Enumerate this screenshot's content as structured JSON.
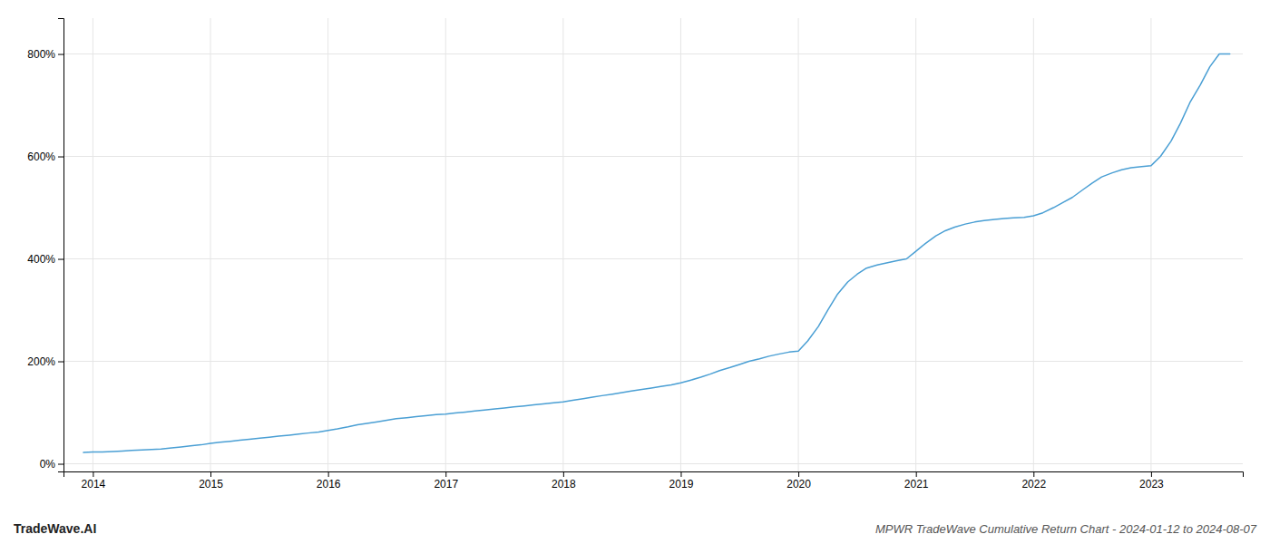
{
  "chart_data": {
    "type": "line",
    "title": "MPWR TradeWave Cumulative Return Chart - 2024-01-12 to 2024-08-07",
    "annotations": [
      "TradeWave.AI"
    ],
    "color": "#4a9fd4",
    "grid": true,
    "x": [
      2013.92,
      2014.0,
      2014.08,
      2014.17,
      2014.25,
      2014.33,
      2014.42,
      2014.5,
      2014.58,
      2014.67,
      2014.75,
      2014.83,
      2014.92,
      2015.0,
      2015.08,
      2015.17,
      2015.25,
      2015.33,
      2015.42,
      2015.5,
      2015.58,
      2015.67,
      2015.75,
      2015.83,
      2015.92,
      2016.0,
      2016.08,
      2016.17,
      2016.25,
      2016.33,
      2016.42,
      2016.5,
      2016.58,
      2016.67,
      2016.75,
      2016.83,
      2016.92,
      2017.0,
      2017.08,
      2017.17,
      2017.25,
      2017.33,
      2017.42,
      2017.5,
      2017.58,
      2017.67,
      2017.75,
      2017.83,
      2017.92,
      2018.0,
      2018.08,
      2018.17,
      2018.25,
      2018.33,
      2018.42,
      2018.5,
      2018.58,
      2018.67,
      2018.75,
      2018.83,
      2018.92,
      2019.0,
      2019.08,
      2019.17,
      2019.25,
      2019.33,
      2019.42,
      2019.5,
      2019.58,
      2019.67,
      2019.75,
      2019.83,
      2019.92,
      2020.0,
      2020.08,
      2020.17,
      2020.25,
      2020.33,
      2020.42,
      2020.5,
      2020.58,
      2020.67,
      2020.75,
      2020.83,
      2020.92,
      2021.0,
      2021.08,
      2021.17,
      2021.25,
      2021.33,
      2021.42,
      2021.5,
      2021.58,
      2021.67,
      2021.75,
      2021.83,
      2021.92,
      2022.0,
      2022.08,
      2022.17,
      2022.25,
      2022.33,
      2022.42,
      2022.5,
      2022.58,
      2022.67,
      2022.75,
      2022.83,
      2022.92,
      2023.0,
      2023.08,
      2023.17,
      2023.25,
      2023.33,
      2023.42,
      2023.5,
      2023.58,
      2023.67
    ],
    "values": [
      22,
      23,
      23,
      24,
      25,
      26,
      27,
      28,
      29,
      31,
      33,
      35,
      37,
      40,
      42,
      44,
      46,
      48,
      50,
      52,
      54,
      56,
      58,
      60,
      62,
      65,
      68,
      72,
      76,
      79,
      82,
      85,
      88,
      90,
      92,
      94,
      96,
      97,
      99,
      101,
      103,
      105,
      107,
      109,
      111,
      113,
      115,
      117,
      119,
      121,
      124,
      127,
      130,
      133,
      136,
      139,
      142,
      145,
      148,
      151,
      154,
      158,
      163,
      169,
      175,
      182,
      188,
      194,
      200,
      205,
      210,
      214,
      218,
      220,
      240,
      268,
      300,
      330,
      355,
      370,
      382,
      388,
      392,
      396,
      400,
      415,
      430,
      445,
      455,
      462,
      468,
      472,
      475,
      477,
      479,
      480,
      481,
      484,
      490,
      500,
      510,
      520,
      535,
      548,
      560,
      568,
      574,
      578,
      580,
      582,
      600,
      630,
      665,
      705,
      740,
      775,
      800,
      800
    ],
    "xlim": [
      2013.75,
      2023.78
    ],
    "xticks": [
      2014,
      2015,
      2016,
      2017,
      2018,
      2019,
      2020,
      2021,
      2022,
      2023
    ],
    "ylim": [
      -15,
      870
    ],
    "yticks": [
      {
        "value": 0,
        "label": "0%"
      },
      {
        "value": 200,
        "label": "200%"
      },
      {
        "value": 400,
        "label": "400%"
      },
      {
        "value": 600,
        "label": "600%"
      },
      {
        "value": 800,
        "label": "800%"
      }
    ]
  }
}
